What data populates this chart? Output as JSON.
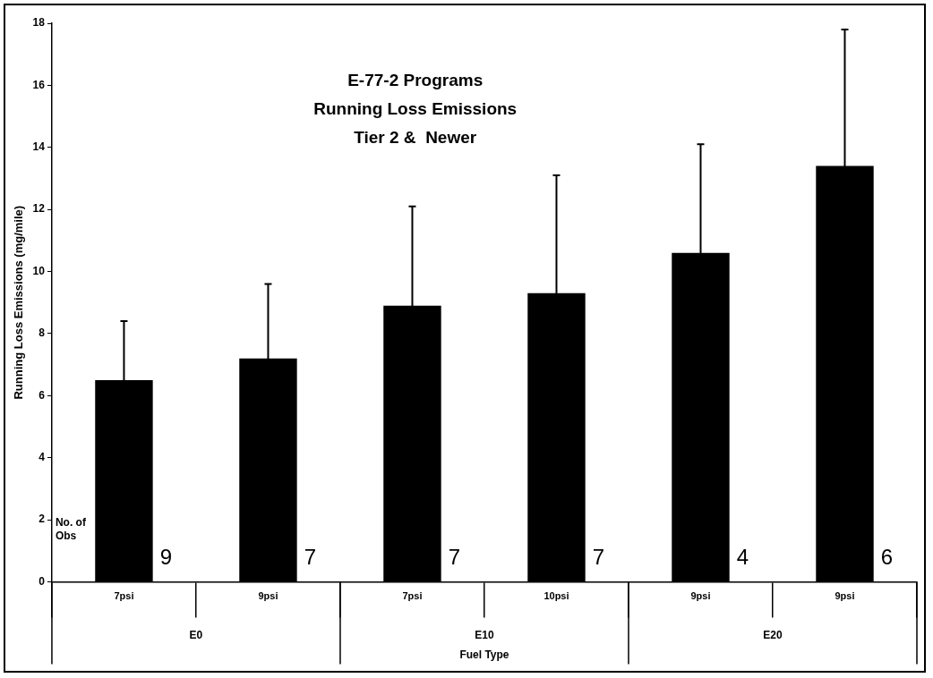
{
  "chart_data": {
    "type": "bar",
    "title": "E-77-2 Programs",
    "subtitle": "Running Loss Emissions\nTier 2 &  Newer",
    "xlabel": "Fuel Type",
    "ylabel": "Running Loss Emissions (mg/mile)",
    "categories": [
      "7psi",
      "9psi",
      "7psi",
      "10psi",
      "9psi",
      "9psi"
    ],
    "values": [
      6.5,
      7.2,
      8.9,
      9.3,
      10.6,
      13.4
    ],
    "color": "#000000",
    "errors": [
      1.9,
      2.4,
      3.2,
      3.8,
      3.5,
      4.4
    ],
    "ylim": [
      0,
      18
    ],
    "yticks": [
      0,
      2,
      4,
      6,
      8,
      10,
      12,
      14,
      16,
      18
    ],
    "grid": false,
    "legend": false,
    "annotations": [
      "No. of Obs",
      "9",
      "7",
      "7",
      "7",
      "4",
      "6",
      "E0",
      "E10",
      "E20"
    ]
  }
}
